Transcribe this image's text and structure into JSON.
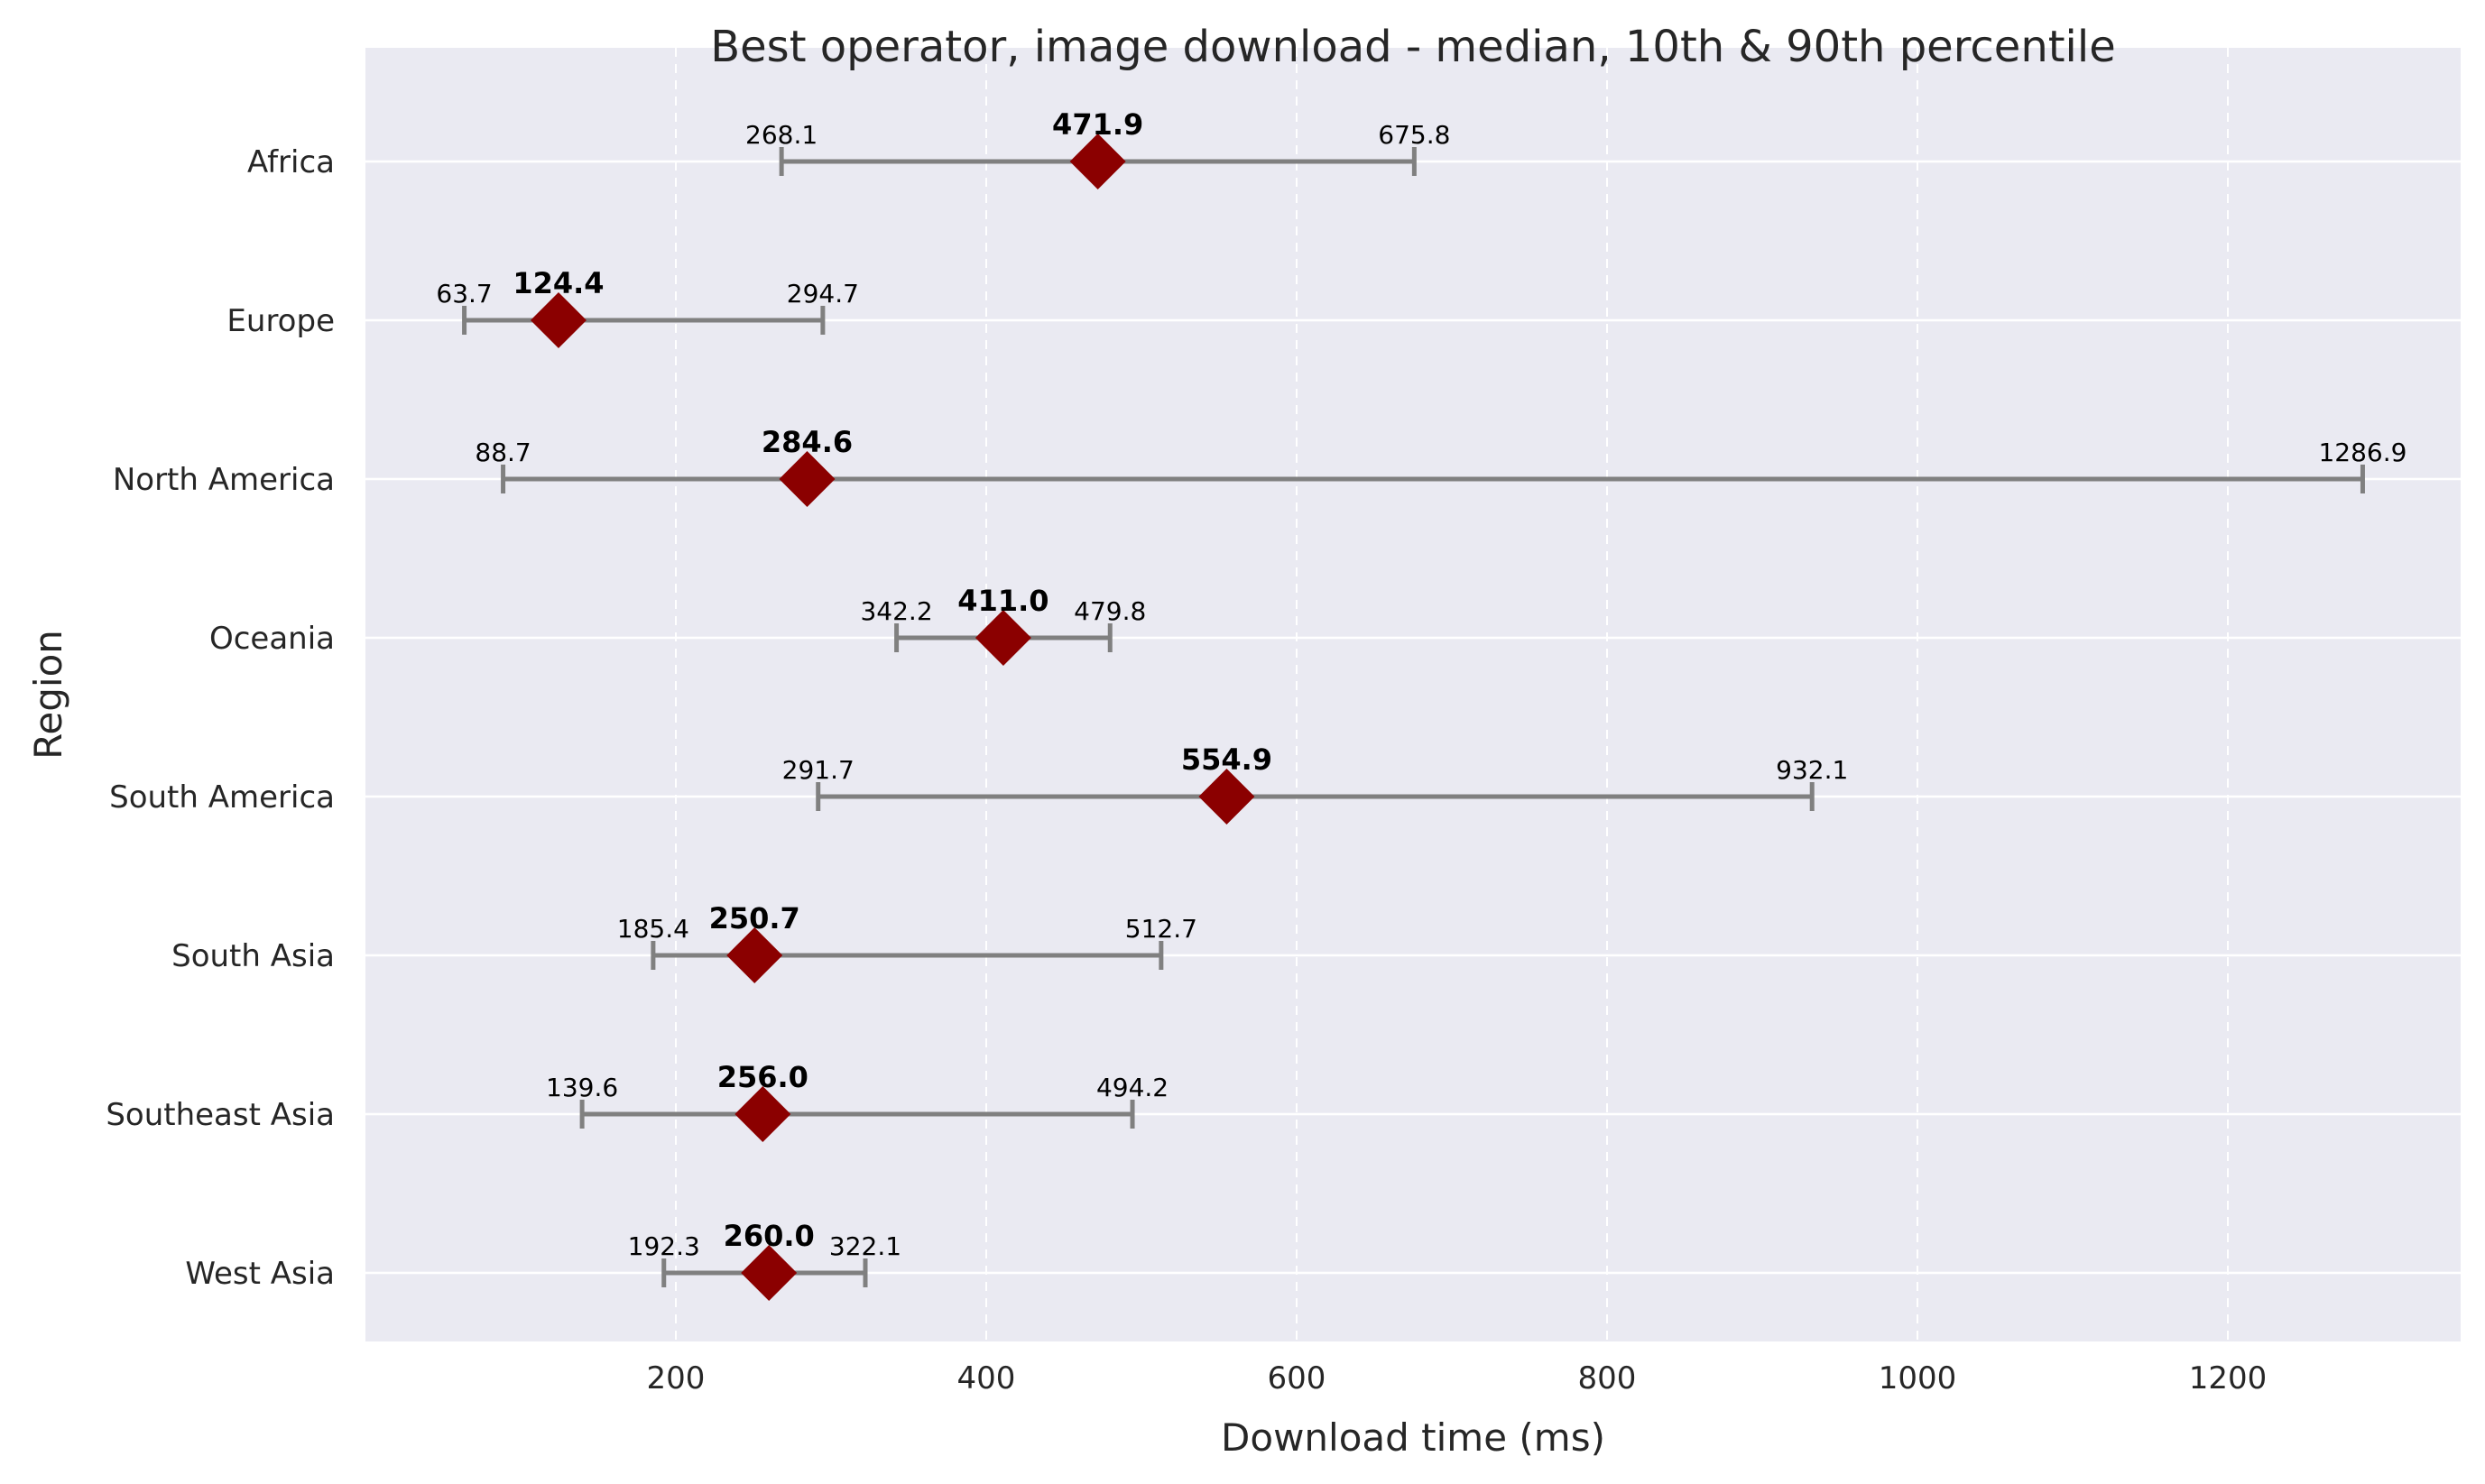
{
  "chart_data": {
    "type": "errorbar",
    "title": "Best operator, image download - median, 10th & 90th percentile",
    "xlabel": "Download time (ms)",
    "ylabel": "Region",
    "xlim": [
      0,
      1350
    ],
    "xticks": [
      200,
      400,
      600,
      800,
      1000,
      1200
    ],
    "xtick_labels": [
      "200",
      "400",
      "600",
      "800",
      "1000",
      "1200"
    ],
    "grid": true,
    "categories": [
      "Africa",
      "Europe",
      "North America",
      "Oceania",
      "South America",
      "South Asia",
      "Southeast Asia",
      "West Asia"
    ],
    "series": [
      {
        "p10": [
          268.1,
          63.7,
          88.7,
          342.2,
          291.7,
          185.4,
          139.6,
          192.3
        ],
        "median": [
          471.9,
          124.4,
          284.6,
          411.0,
          554.9,
          250.7,
          256.0,
          260.0
        ],
        "p90": [
          675.8,
          294.7,
          1286.9,
          479.8,
          932.1,
          512.7,
          494.2,
          322.1
        ]
      }
    ],
    "labels": {
      "p10": [
        "268.1",
        "63.7",
        "88.7",
        "342.2",
        "291.7",
        "185.4",
        "139.6",
        "192.3"
      ],
      "median": [
        "471.9",
        "124.4",
        "284.6",
        "411.0",
        "554.9",
        "250.7",
        "256.0",
        "260.0"
      ],
      "p90": [
        "675.8",
        "294.7",
        "1286.9",
        "479.8",
        "932.1",
        "512.7",
        "494.2",
        "322.1"
      ]
    },
    "colors": {
      "background": "#eaeaf2",
      "grid": "#ffffff",
      "range_line": "#808080",
      "median_marker": "#8b0000"
    }
  }
}
